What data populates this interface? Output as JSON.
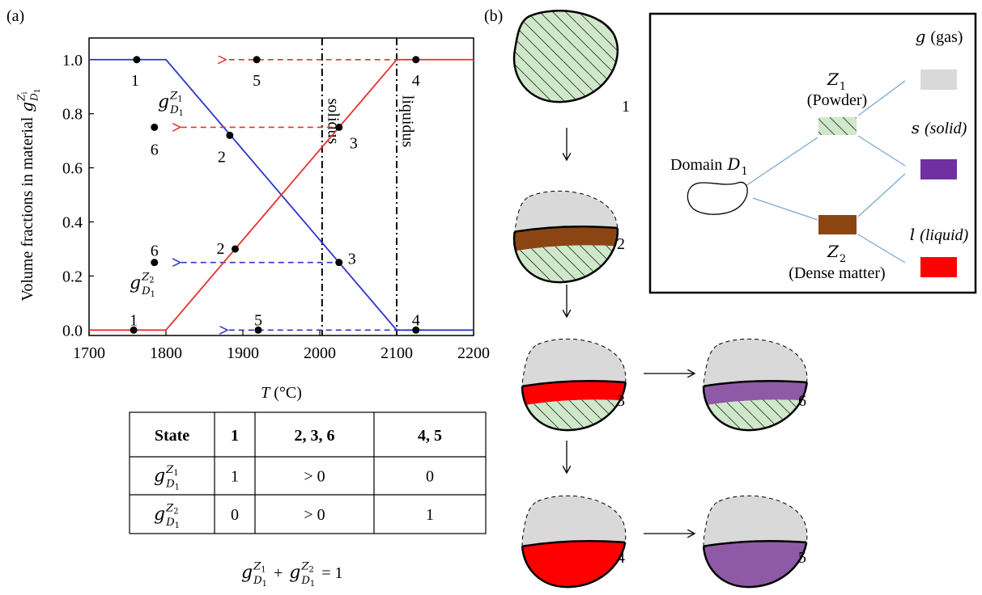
{
  "panel_a": "(a)",
  "panel_b": "(b)",
  "chart_data": {
    "type": "line",
    "x_label": {
      "symbol": "T",
      "unit": "(°C)"
    },
    "y_label": {
      "text": "Volume fractions in material",
      "symbol": {
        "base": "g",
        "sup": "Z",
        "sup_sub": "i",
        "sub": "D",
        "sub_sub": "1"
      }
    },
    "xlim": [
      1700,
      2200
    ],
    "xticks": [
      1700,
      1800,
      1900,
      2000,
      2100,
      2200
    ],
    "ylim": [
      -0.02,
      1.08
    ],
    "yticks": [
      {
        "value": 0,
        "label": "0.0"
      },
      {
        "value": 0.2,
        "label": "0.2"
      },
      {
        "value": 0.4,
        "label": "0.4"
      },
      {
        "value": 0.6,
        "label": "0.6"
      },
      {
        "value": 0.8,
        "label": "0.8"
      },
      {
        "value": 1,
        "label": "1.0"
      }
    ],
    "series": [
      {
        "color": "#2b35c9",
        "x": [
          1700,
          1800,
          2100,
          2200
        ],
        "values": [
          1,
          1,
          0,
          0
        ],
        "label": {
          "base": "g",
          "sup": "Z",
          "sup_sub": "1",
          "sub": "D",
          "sub_sub": "1"
        },
        "points": {
          "labels": [
            "1",
            "2",
            "3",
            "4",
            "5",
            "6"
          ],
          "x": [
            1762,
            1883,
            2025,
            2125,
            1920,
            1785
          ],
          "y": [
            1,
            0.72,
            0.25,
            0,
            0,
            0.25
          ]
        }
      },
      {
        "color": "#e8312a",
        "x": [
          1700,
          1800,
          2100,
          2200
        ],
        "values": [
          0,
          0,
          1,
          1
        ],
        "label": {
          "base": "g",
          "sup": "Z",
          "sup_sub": "2",
          "sub": "D",
          "sub_sub": "1"
        },
        "points": {
          "labels": [
            "1",
            "2",
            "3",
            "4",
            "5",
            "6"
          ],
          "x": [
            1758,
            1890,
            2025,
            2125,
            1918,
            1785
          ],
          "y": [
            0,
            0.3,
            0.75,
            1,
            1,
            0.75
          ]
        }
      }
    ],
    "vlines": [
      {
        "x": 2003,
        "label": "solidus"
      },
      {
        "x": 2100,
        "label": "liquidus"
      }
    ]
  },
  "table": {
    "header": [
      "State",
      "1",
      "2, 3, 6",
      "4, 5"
    ],
    "rows": [
      [
        {
          "base": "g",
          "sup": "Z",
          "sup_sub": "1",
          "sub": "D",
          "sub_sub": "1"
        },
        "1",
        "> 0",
        "0"
      ],
      [
        {
          "base": "g",
          "sup": "Z",
          "sup_sub": "2",
          "sub": "D",
          "sub_sub": "1"
        },
        "0",
        "> 0",
        "1"
      ]
    ]
  },
  "equation": {
    "terms": [
      {
        "base": "g",
        "sup": "Z",
        "sup_sub": "1",
        "sub": "D",
        "sub_sub": "1"
      },
      {
        "base": "g",
        "sup": "Z",
        "sup_sub": "2",
        "sub": "D",
        "sub_sub": "1"
      }
    ],
    "plus": "+",
    "rhs": "= 1"
  },
  "states": [
    "1",
    "2",
    "3",
    "6",
    "4",
    "5"
  ],
  "diagram": {
    "domain": {
      "text": "Domain",
      "symbol": "D",
      "sub": "1"
    },
    "z1": {
      "symbol": "Z",
      "sub": "1",
      "desc": "(Powder)"
    },
    "z2": {
      "symbol": "Z",
      "sub": "2",
      "desc": "(Dense matter)"
    },
    "phases": [
      {
        "symbol": "g",
        "desc": "(gas)",
        "italic": false,
        "color": "#d9d9d9"
      },
      {
        "symbol": "s",
        "desc": "(solid)",
        "italic": true,
        "color": "#7030a0"
      },
      {
        "symbol": "l",
        "desc": "(liquid)",
        "italic": true,
        "color": "#ff0000"
      }
    ]
  }
}
